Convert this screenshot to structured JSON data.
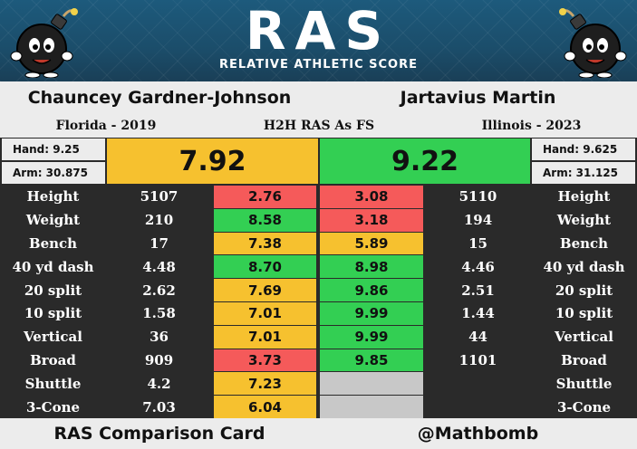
{
  "header": {
    "logo_text": "RAS",
    "logo_subtitle": "RELATIVE ATHLETIC SCORE"
  },
  "players": {
    "left": {
      "name": "Chauncey Gardner-Johnson",
      "school_year": "Florida - 2019",
      "hand": "Hand: 9.25",
      "arm": "Arm: 30.875",
      "ras": "7.92",
      "ras_color": "#f6c12f"
    },
    "right": {
      "name": "Jartavius Martin",
      "school_year": "Illinois - 2023",
      "hand": "Hand: 9.625",
      "arm": "Arm: 31.125",
      "ras": "9.22",
      "ras_color": "#33cf53"
    }
  },
  "comparison_title": "H2H RAS As FS",
  "metrics": [
    {
      "label": "Height",
      "left_value": "5107",
      "left_score": "2.76",
      "right_score": "3.08",
      "right_value": "5110"
    },
    {
      "label": "Weight",
      "left_value": "210",
      "left_score": "8.58",
      "right_score": "3.18",
      "right_value": "194"
    },
    {
      "label": "Bench",
      "left_value": "17",
      "left_score": "7.38",
      "right_score": "5.89",
      "right_value": "15"
    },
    {
      "label": "40 yd dash",
      "left_value": "4.48",
      "left_score": "8.70",
      "right_score": "8.98",
      "right_value": "4.46"
    },
    {
      "label": "20 split",
      "left_value": "2.62",
      "left_score": "7.69",
      "right_score": "9.86",
      "right_value": "2.51"
    },
    {
      "label": "10 split",
      "left_value": "1.58",
      "left_score": "7.01",
      "right_score": "9.99",
      "right_value": "1.44"
    },
    {
      "label": "Vertical",
      "left_value": "36",
      "left_score": "7.01",
      "right_score": "9.99",
      "right_value": "44"
    },
    {
      "label": "Broad",
      "left_value": "909",
      "left_score": "3.73",
      "right_score": "9.85",
      "right_value": "1101"
    },
    {
      "label": "Shuttle",
      "left_value": "4.2",
      "left_score": "7.23",
      "right_score": "",
      "right_value": ""
    },
    {
      "label": "3-Cone",
      "left_value": "7.03",
      "left_score": "6.04",
      "right_score": "",
      "right_value": ""
    }
  ],
  "colors": {
    "poor": "#f55a5a",
    "average": "#f6c12f",
    "good": "#33cf53",
    "missing": "#c8c8c8"
  },
  "footer": {
    "left_text": "RAS Comparison Card",
    "right_text": "@Mathbomb"
  }
}
